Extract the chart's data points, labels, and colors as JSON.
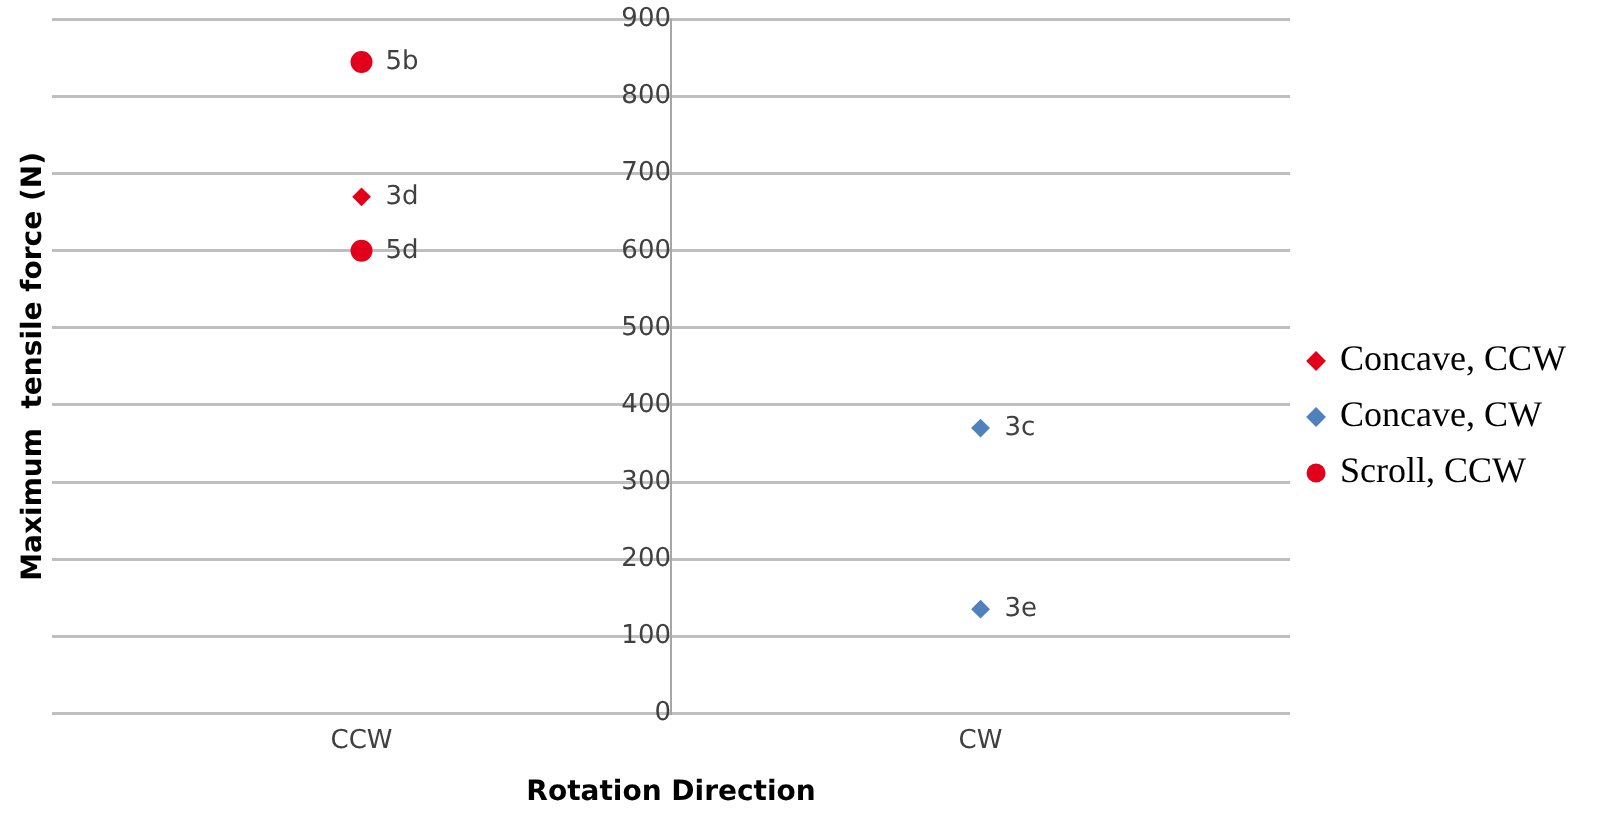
{
  "chart_data": {
    "type": "scatter",
    "xlabel": "Rotation Direction",
    "ylabel": "Maximum  tensile force (N)",
    "categories": [
      "CCW",
      "CW"
    ],
    "series": [
      {
        "name": "Concave, CCW",
        "color": "#e3001b",
        "marker": "diamond",
        "x": [
          "CCW"
        ],
        "values": [
          670
        ]
      },
      {
        "name": "Concave, CW",
        "color": "#4f81bd",
        "marker": "diamond",
        "x": [
          "CW",
          "CW"
        ],
        "values": [
          370,
          135
        ]
      },
      {
        "name": "Scroll, CCW",
        "color": "#e3001b",
        "marker": "circle",
        "x": [
          "CCW",
          "CCW"
        ],
        "values": [
          845,
          600
        ]
      }
    ],
    "annotations": [
      {
        "text": "5b",
        "x": "CCW",
        "y": 845
      },
      {
        "text": "3d",
        "x": "CCW",
        "y": 670
      },
      {
        "text": "5d",
        "x": "CCW",
        "y": 600
      },
      {
        "text": "3c",
        "x": "CW",
        "y": 370
      },
      {
        "text": "3e",
        "x": "CW",
        "y": 135
      }
    ],
    "ylim": [
      0,
      900
    ],
    "yticks": [
      0,
      100,
      200,
      300,
      400,
      500,
      600,
      700,
      800,
      900
    ],
    "grid": "y",
    "legend": "right"
  }
}
